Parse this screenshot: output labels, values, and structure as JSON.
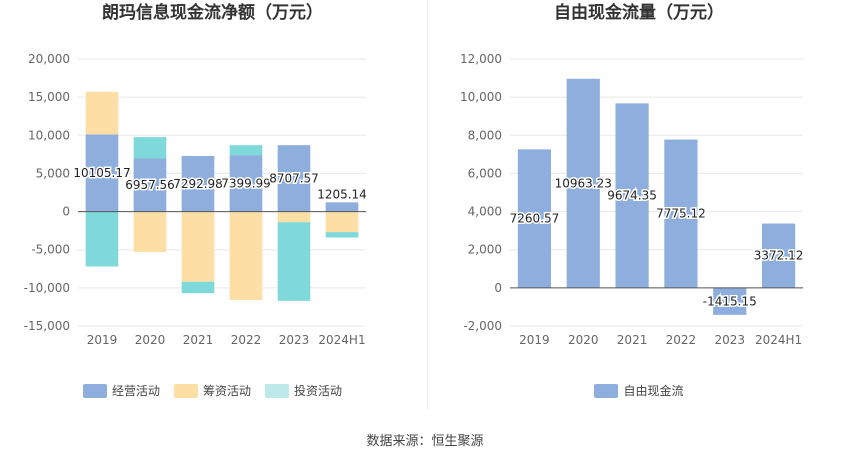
{
  "source": "数据来源：恒生聚源",
  "colors": {
    "operating": "#8EAEDD",
    "financing": "#FDDFA6",
    "investing": "#7FD8D9",
    "investing_legend": "#BDE9EA",
    "fcf": "#8EAEDD",
    "grid": "#E8E8E8",
    "axis_text": "#666666"
  },
  "chart_data": [
    {
      "type": "bar",
      "stacked": true,
      "title": "朗玛信息现金流净额（万元）",
      "categories": [
        "2019",
        "2020",
        "2021",
        "2022",
        "2023",
        "2024H1"
      ],
      "ylim": [
        -15000,
        20000
      ],
      "yticks": [
        20000,
        15000,
        10000,
        5000,
        0,
        -5000,
        -10000,
        -15000
      ],
      "ytick_labels": [
        "20,000",
        "15,000",
        "10,000",
        "5,000",
        "0",
        "-5,000",
        "-10,000",
        "-15,000"
      ],
      "series": [
        {
          "name": "经营活动",
          "color_key": "operating",
          "values": [
            10105.17,
            6957.56,
            7292.98,
            7399.99,
            8707.57,
            1205.14
          ]
        },
        {
          "name": "筹资活动",
          "color_key": "financing",
          "values": [
            5600,
            -5300,
            -9200,
            -11600,
            -1400,
            -2700
          ]
        },
        {
          "name": "投资活动",
          "color_key": "investing",
          "values": [
            -7200,
            2800,
            -1500,
            1300,
            -10300,
            -700
          ]
        }
      ],
      "data_labels": [
        "10105.17",
        "6957.56",
        "7292.98",
        "7399.99",
        "8707.57",
        "1205.14"
      ],
      "legend": [
        {
          "name": "经营活动",
          "color_key": "operating"
        },
        {
          "name": "筹资活动",
          "color_key": "financing"
        },
        {
          "name": "投资活动",
          "color_key": "investing_legend"
        }
      ],
      "legend_position": "bottom",
      "grid": true
    },
    {
      "type": "bar",
      "title": "自由现金流量（万元）",
      "categories": [
        "2019",
        "2020",
        "2021",
        "2022",
        "2023",
        "2024H1"
      ],
      "ylim": [
        -2000,
        12000
      ],
      "yticks": [
        12000,
        10000,
        8000,
        6000,
        4000,
        2000,
        0,
        -2000
      ],
      "ytick_labels": [
        "12,000",
        "10,000",
        "8,000",
        "6,000",
        "4,000",
        "2,000",
        "0",
        "-2,000"
      ],
      "series": [
        {
          "name": "自由现金流",
          "color_key": "fcf",
          "values": [
            7260.57,
            10963.23,
            9674.35,
            7775.12,
            -1415.15,
            3372.12
          ]
        }
      ],
      "data_labels": [
        "7260.57",
        "10963.23",
        "9674.35",
        "7775.12",
        "-1415.15",
        "3372.12"
      ],
      "legend": [
        {
          "name": "自由现金流",
          "color_key": "fcf"
        }
      ],
      "legend_position": "bottom",
      "grid": true
    }
  ]
}
